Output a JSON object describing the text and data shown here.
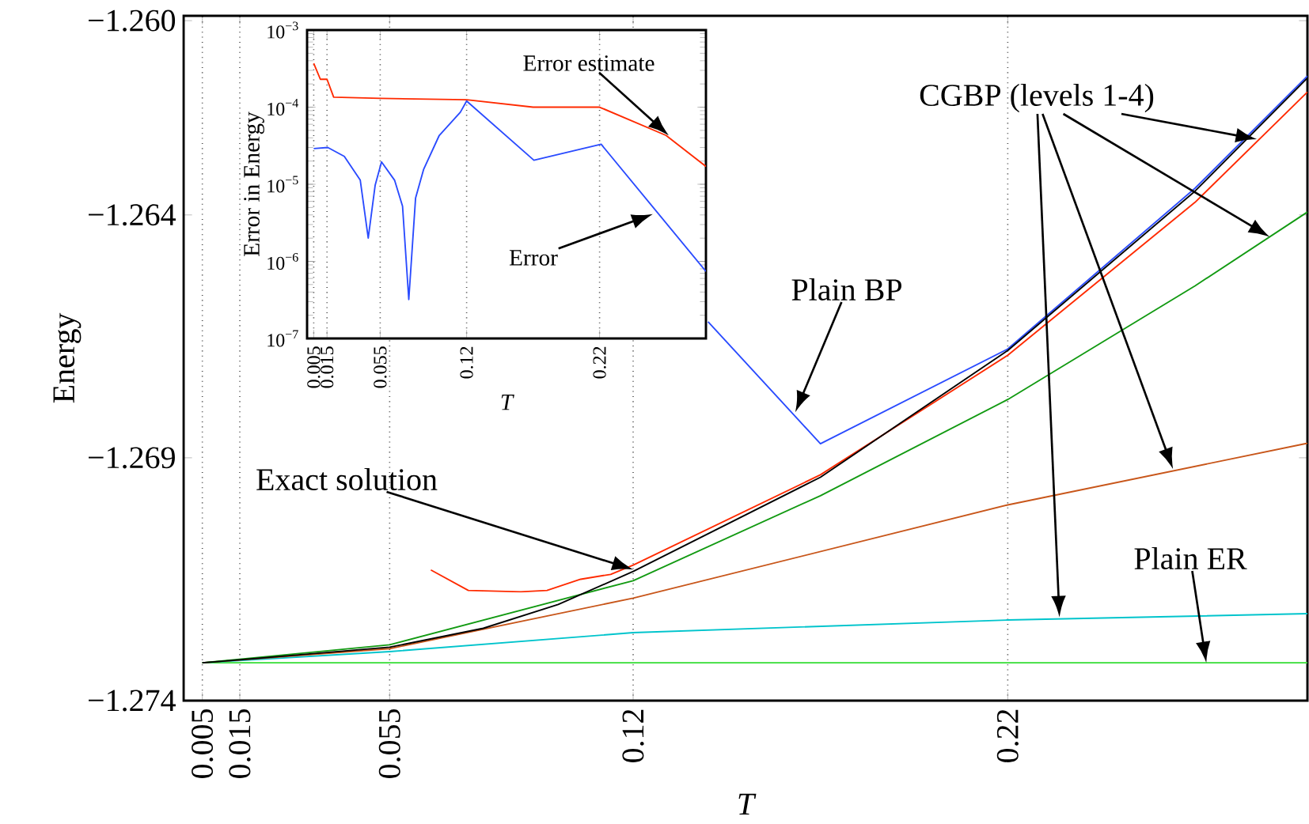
{
  "chart_data": [
    {
      "type": "line",
      "xlabel": "T",
      "ylabel": "Energy",
      "xlim": [
        0,
        0.3
      ],
      "ylim": [
        -1.274,
        -1.2599
      ],
      "xticks": [
        0.005,
        0.015,
        0.055,
        0.12,
        0.22
      ],
      "yticks": [
        {
          "value": -1.26,
          "label": "−1.260"
        },
        {
          "value": -1.264,
          "label": "−1.264"
        },
        {
          "value": -1.269,
          "label": "−1.269"
        },
        {
          "value": -1.274,
          "label": "−1.274"
        }
      ],
      "grid": "x",
      "series": [
        {
          "color": "#33dd33",
          "x": [
            0.005,
            0.3
          ],
          "values": [
            -1.27322,
            -1.27322
          ]
        },
        {
          "color": "#00c4cc",
          "x": [
            0.005,
            0.055,
            0.12,
            0.22,
            0.3
          ],
          "values": [
            -1.27322,
            -1.27299,
            -1.2726,
            -1.27234,
            -1.27221
          ]
        },
        {
          "color": "#c8561a",
          "x": [
            0.005,
            0.055,
            0.12,
            0.22,
            0.3
          ],
          "values": [
            -1.27322,
            -1.27293,
            -1.27189,
            -1.26997,
            -1.2687
          ]
        },
        {
          "color": "#129a12",
          "x": [
            0.005,
            0.055,
            0.12,
            0.17,
            0.22,
            0.27,
            0.3
          ],
          "values": [
            -1.27322,
            -1.27285,
            -1.27153,
            -1.26978,
            -1.2678,
            -1.26546,
            -1.26394
          ]
        },
        {
          "color": "#2a4bff",
          "x": [
            0.14,
            0.17,
            0.22,
            0.27,
            0.3
          ],
          "values": [
            -1.2662,
            -1.26871,
            -1.26676,
            -1.26345,
            -1.26114
          ]
        },
        {
          "color": "#ff2a00",
          "x": [
            0.066,
            0.076,
            0.09,
            0.097,
            0.106,
            0.114,
            0.12,
            0.17,
            0.22,
            0.27,
            0.3
          ],
          "values": [
            -1.27131,
            -1.27173,
            -1.27176,
            -1.27173,
            -1.2715,
            -1.2714,
            -1.27121,
            -1.26935,
            -1.26689,
            -1.26374,
            -1.26147
          ]
        },
        {
          "color": "#000000",
          "x": [
            0.005,
            0.015,
            0.055,
            0.08,
            0.1,
            0.12,
            0.17,
            0.22,
            0.27,
            0.3
          ],
          "values": [
            -1.27322,
            -1.27316,
            -1.2729,
            -1.27251,
            -1.27202,
            -1.27134,
            -1.2694,
            -1.26679,
            -1.26351,
            -1.26118
          ]
        }
      ],
      "annotations": [
        "Exact solution",
        "Plain BP",
        "CGBP (levels 1-4)",
        {
          "text": "Plain ER",
          "x": 0.273,
          "y": -1.27322
        }
      ]
    },
    {
      "type": "line",
      "xlabel": "T",
      "ylabel": "Error in Energy",
      "log": "y",
      "xlim": [
        0,
        0.3
      ],
      "ylim": [
        1e-07,
        0.001
      ],
      "xticks": [
        0.005,
        0.015,
        0.055,
        0.12,
        0.22
      ],
      "yticks": [
        {
          "value": 1e-07,
          "label": "10$^{−7}$"
        },
        {
          "value": 1e-06,
          "label": "10$^{−6}$"
        },
        {
          "value": 1e-05,
          "label": "10$^{−5}$"
        },
        {
          "value": 0.0001,
          "label": "10$^{−4}$"
        },
        {
          "value": 0.001,
          "label": "10$^{−3}$"
        }
      ],
      "grid": "x",
      "series": [
        {
          "color": "#ff2a00",
          "x": [
            0.005,
            0.01,
            0.015,
            0.02,
            0.055,
            0.12,
            0.17,
            0.22,
            0.27,
            0.3
          ],
          "values": [
            0.00037,
            0.00023,
            0.00023,
            0.000135,
            0.00013,
            0.000125,
            0.0001,
            0.0001,
            4.3e-05,
            1.7e-05
          ]
        },
        {
          "color": "#2a4bff",
          "x": [
            0.005,
            0.0156,
            0.028,
            0.04,
            0.046,
            0.0512,
            0.056,
            0.0658,
            0.0718,
            0.0765,
            0.0816,
            0.0876,
            0.0994,
            0.1153,
            0.12,
            0.1706,
            0.2212,
            0.3
          ],
          "values": [
            2.9e-05,
            3e-05,
            2.3e-05,
            1.13e-05,
            2e-06,
            9.7e-06,
            1.95e-05,
            1.13e-05,
            5.2e-06,
            3.2e-07,
            6.6e-06,
            1.55e-05,
            4.3e-05,
            8.6e-05,
            0.00012,
            2.05e-05,
            3.3e-05,
            7.4e-07
          ]
        }
      ],
      "annotations": [
        {
          "text": "Error estimate",
          "x": 0.272,
          "y": 4.3e-05
        },
        "Error"
      ]
    }
  ]
}
